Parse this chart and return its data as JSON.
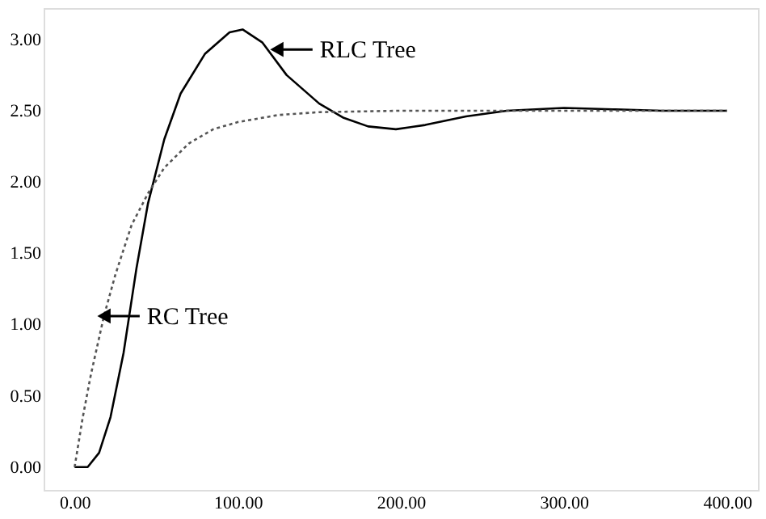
{
  "chart_data": {
    "type": "line",
    "series": [
      {
        "color": "#000000",
        "line_style": "solid",
        "x": [
          0,
          8,
          15,
          22,
          30,
          38,
          45,
          55,
          65,
          80,
          95,
          103,
          115,
          130,
          150,
          165,
          180,
          197,
          215,
          240,
          265,
          300,
          330,
          360,
          400
        ],
        "values": [
          0,
          0,
          0.1,
          0.35,
          0.8,
          1.4,
          1.85,
          2.3,
          2.62,
          2.9,
          3.05,
          3.07,
          2.98,
          2.75,
          2.55,
          2.45,
          2.39,
          2.37,
          2.4,
          2.46,
          2.5,
          2.52,
          2.51,
          2.5,
          2.5
        ]
      },
      {
        "color": "#555555",
        "line_style": "dotted",
        "x": [
          0,
          5,
          10,
          18,
          25,
          35,
          45,
          55,
          70,
          85,
          100,
          125,
          150,
          200,
          400
        ],
        "values": [
          0,
          0.35,
          0.65,
          1.06,
          1.35,
          1.7,
          1.92,
          2.1,
          2.27,
          2.37,
          2.42,
          2.47,
          2.49,
          2.5,
          2.5
        ]
      }
    ],
    "xlim": [
      -19,
      419
    ],
    "ylim": [
      -0.16,
      3.22
    ],
    "xticks": [
      {
        "value": 0,
        "label": "0.00"
      },
      {
        "value": 100,
        "label": "100.00"
      },
      {
        "value": 200,
        "label": "200.00"
      },
      {
        "value": 300,
        "label": "300.00"
      },
      {
        "value": 400,
        "label": "400.00"
      }
    ],
    "yticks": [
      {
        "value": 0,
        "label": "0.00"
      },
      {
        "value": 0.5,
        "label": "0.50"
      },
      {
        "value": 1,
        "label": "1.00"
      },
      {
        "value": 1.5,
        "label": "1.50"
      },
      {
        "value": 2,
        "label": "2.00"
      },
      {
        "value": 2.5,
        "label": "2.50"
      },
      {
        "value": 3,
        "label": "3.00"
      }
    ],
    "annotations": [
      {
        "text": "RLC Tree",
        "x": 124,
        "y": 2.93
      },
      {
        "text": "RC Tree",
        "x": 18,
        "y": 1.06
      }
    ],
    "grid": false,
    "marker": "none"
  }
}
